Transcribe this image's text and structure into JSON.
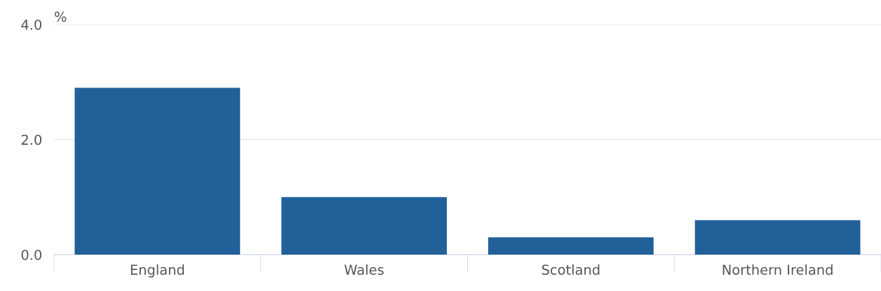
{
  "chart_data": {
    "type": "bar",
    "ylabel": "%",
    "categories": [
      "England",
      "Wales",
      "Scotland",
      "Northern Ireland"
    ],
    "values": [
      2.9,
      1.0,
      0.3,
      0.6
    ],
    "color": "#22609a",
    "ylim": [
      0,
      4.0
    ],
    "yticks": [
      {
        "value": 0,
        "label": "0.0"
      },
      {
        "value": 2,
        "label": "2.0"
      },
      {
        "value": 4,
        "label": "4.0"
      }
    ],
    "grid": "y"
  }
}
